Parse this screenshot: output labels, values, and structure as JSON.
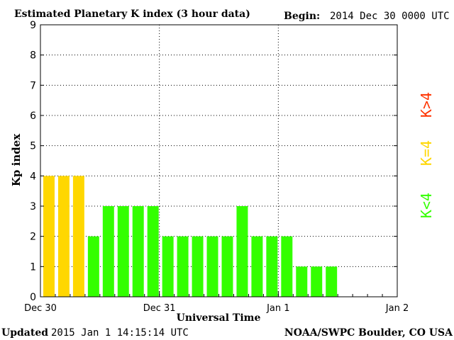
{
  "header": {
    "title": "Estimated Planetary K index (3 hour data)",
    "begin_label": "Begin:",
    "begin_value": "2014 Dec 30 0000 UTC"
  },
  "footer": {
    "updated_label": "Updated",
    "updated_value": "2015 Jan  1 14:15:14 UTC",
    "source": "NOAA/SWPC Boulder, CO USA"
  },
  "legend": {
    "high": {
      "label": "K>4",
      "color": "#ff3300"
    },
    "mid": {
      "label": "K=4",
      "color": "#ffd700"
    },
    "low": {
      "label": "K<4",
      "color": "#33ff00"
    }
  },
  "chart_data": {
    "type": "bar",
    "title": "Estimated Planetary K index (3 hour data)",
    "xlabel": "Universal Time",
    "ylabel": "Kp index",
    "ylim": [
      0,
      9
    ],
    "yticks": [
      "0",
      "1",
      "2",
      "3",
      "4",
      "5",
      "6",
      "7",
      "8",
      "9"
    ],
    "xticks": [
      "Dec 30",
      "Dec 31",
      "Jan 1",
      "Jan 2"
    ],
    "slots": 24,
    "values": [
      4,
      4,
      4,
      2,
      3,
      3,
      3,
      3,
      2,
      2,
      2,
      2,
      2,
      3,
      2,
      2,
      2,
      1,
      1,
      1
    ],
    "grid": true,
    "colors": {
      "k_lt_4": "#33ff00",
      "k_eq_4": "#ffd700",
      "k_gt_4": "#ff3300"
    }
  }
}
